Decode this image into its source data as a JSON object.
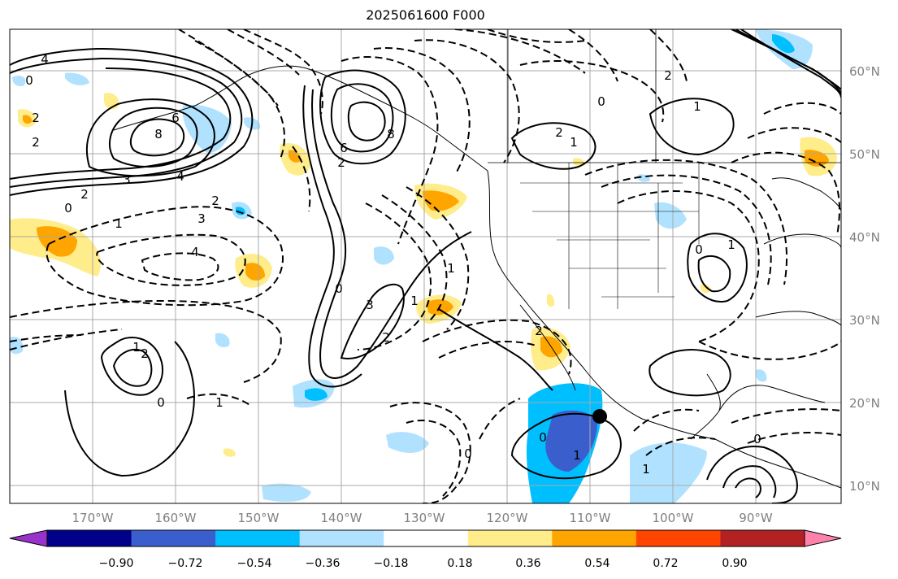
{
  "title": "2025061600 F000",
  "lat_labels": [
    "60°N",
    "50°N",
    "40°N",
    "30°N",
    "20°N",
    "10°N"
  ],
  "lon_labels": [
    "170°W",
    "160°W",
    "150°W",
    "140°W",
    "130°W",
    "120°W",
    "110°W",
    "100°W",
    "90°W"
  ],
  "colorbar": {
    "ticks": [
      "−0.90",
      "−0.72",
      "−0.54",
      "−0.36",
      "−0.18",
      "0.18",
      "0.36",
      "0.54",
      "0.72",
      "0.90"
    ],
    "colors": [
      "#9932cc",
      "#00008b",
      "#3a5fcd",
      "#00bfff",
      "#b0e2ff",
      "#ffffff",
      "#ffec8b",
      "#ffa500",
      "#ff4500",
      "#b22222",
      "#ff82ab"
    ]
  },
  "contour_labels": [
    "4",
    "0",
    "2",
    "2",
    "8",
    "6",
    "3",
    "4",
    "2",
    "0",
    "1",
    "4",
    "3",
    "2",
    "6",
    "8",
    "2",
    "0",
    "3",
    "1",
    "2",
    "1",
    "1",
    "0",
    "2",
    "1",
    "0",
    "2",
    "0",
    "1",
    "2",
    "1",
    "2",
    "0",
    "1",
    "0",
    "1",
    "1",
    "0"
  ],
  "marker": {
    "lon": -108.5,
    "lat": 18.5
  }
}
